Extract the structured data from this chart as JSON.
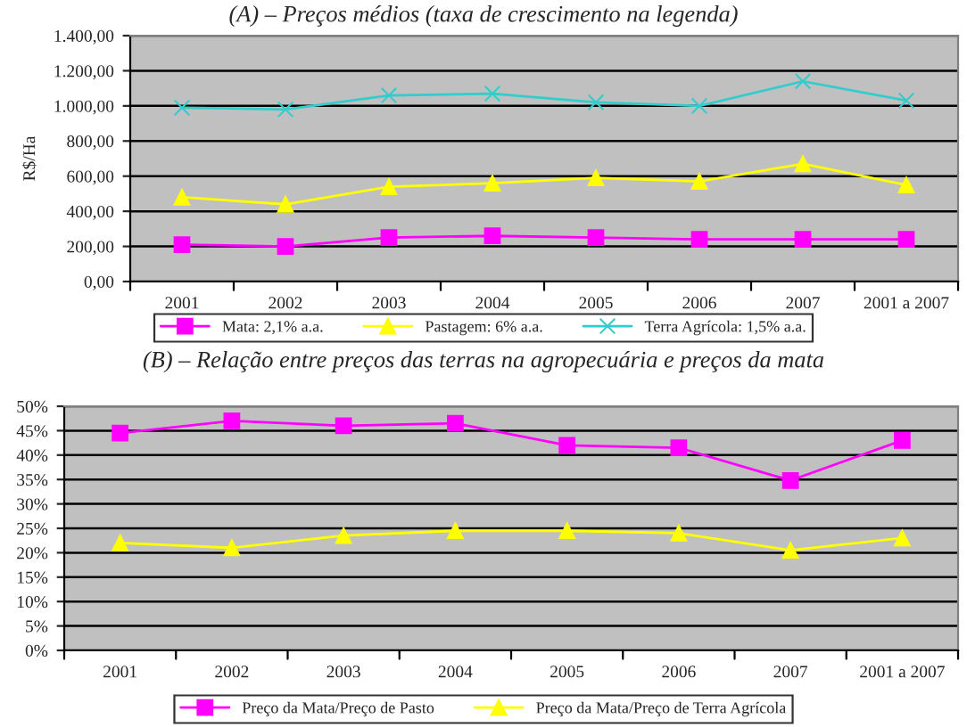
{
  "chart_data": [
    {
      "type": "line",
      "title": "(A) – Preços médios (taxa de crescimento na legenda)",
      "ylabel": "R$/Ha",
      "categories": [
        "2001",
        "2002",
        "2003",
        "2004",
        "2005",
        "2006",
        "2007",
        "2001 a 2007"
      ],
      "series": [
        {
          "name": "Mata: 2,1% a.a.",
          "color": "#ff00ff",
          "marker": "square",
          "values": [
            210,
            200,
            250,
            260,
            250,
            240,
            240,
            240
          ]
        },
        {
          "name": "Pastagem: 6% a.a.",
          "color": "#ffff00",
          "marker": "triangle",
          "values": [
            480,
            440,
            540,
            560,
            590,
            570,
            670,
            550
          ]
        },
        {
          "name": "Terra Agrícola: 1,5% a.a.",
          "color": "#33cccc",
          "marker": "cross",
          "values": [
            990,
            980,
            1060,
            1070,
            1020,
            1000,
            1140,
            1030
          ]
        }
      ],
      "ylim": [
        0,
        1400
      ],
      "yticks": [
        {
          "value": 0,
          "label": "0,00"
        },
        {
          "value": 200,
          "label": "200,00"
        },
        {
          "value": 400,
          "label": "400,00"
        },
        {
          "value": 600,
          "label": "600,00"
        },
        {
          "value": 800,
          "label": "800,00"
        },
        {
          "value": 1000,
          "label": "1.000,00"
        },
        {
          "value": 1200,
          "label": "1.200,00"
        },
        {
          "value": 1400,
          "label": "1.400,00"
        }
      ],
      "grid": "y",
      "legend": "bottom"
    },
    {
      "type": "line",
      "title": "(B) – Relação entre preços das terras na agropecuária e preços da mata",
      "categories": [
        "2001",
        "2002",
        "2003",
        "2004",
        "2005",
        "2006",
        "2007",
        "2001 a 2007"
      ],
      "series": [
        {
          "name": "Preço da Mata/Preço de Pasto",
          "color": "#ff00ff",
          "marker": "square",
          "values": [
            44.5,
            47,
            46,
            46.5,
            42,
            41.5,
            34.8,
            43
          ]
        },
        {
          "name": "Preço da Mata/Preço de Terra Agrícola",
          "color": "#ffff00",
          "marker": "triangle",
          "values": [
            22,
            21,
            23.5,
            24.5,
            24.5,
            24,
            20.5,
            23
          ]
        }
      ],
      "ylim": [
        0,
        50
      ],
      "yticks": [
        {
          "value": 0,
          "label": "0%"
        },
        {
          "value": 5,
          "label": "5%"
        },
        {
          "value": 10,
          "label": "10%"
        },
        {
          "value": 15,
          "label": "15%"
        },
        {
          "value": 20,
          "label": "20%"
        },
        {
          "value": 25,
          "label": "25%"
        },
        {
          "value": 30,
          "label": "30%"
        },
        {
          "value": 35,
          "label": "35%"
        },
        {
          "value": 40,
          "label": "40%"
        },
        {
          "value": 45,
          "label": "45%"
        },
        {
          "value": 50,
          "label": "50%"
        }
      ],
      "grid": "y",
      "legend": "bottom"
    }
  ]
}
